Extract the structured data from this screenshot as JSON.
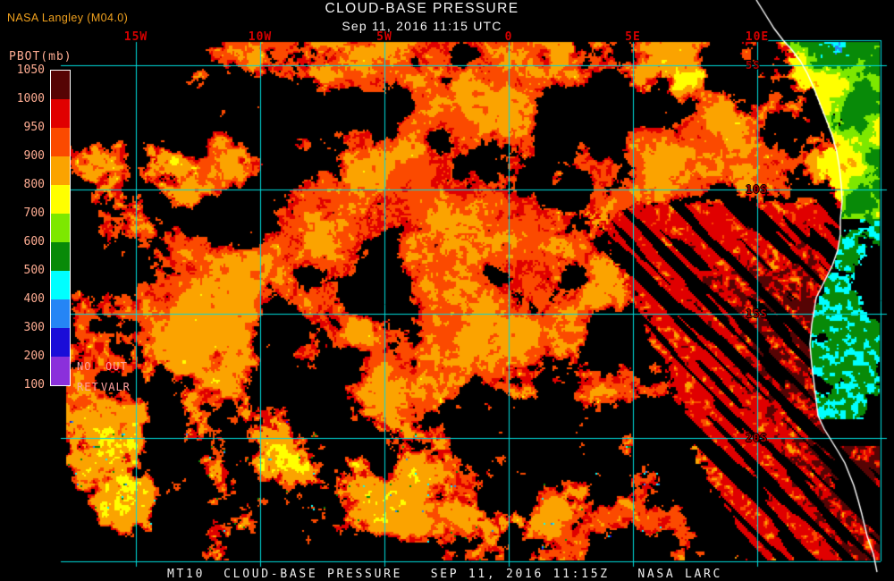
{
  "header": {
    "source_label": "NASA Langley (M04.0)",
    "title": "CLOUD-BASE PRESSURE",
    "subtitle": "Sep 11, 2016 11:15 UTC"
  },
  "colorbar": {
    "title": "PBOT(mb)",
    "unit": "mb",
    "tick_labels": [
      "1050",
      "1000",
      "950",
      "900",
      "800",
      "700",
      "600",
      "500",
      "400",
      "300",
      "200",
      "100"
    ],
    "band_colors": [
      "#560404",
      "#E00000",
      "#FB4A00",
      "#FBA300",
      "#FFFF00",
      "#7DE800",
      "#088A08",
      "#00FFFF",
      "#2585F5",
      "#1A0DD8",
      "#8B30DB"
    ],
    "flag_labels": [
      "NO",
      "OUT",
      "RET",
      "VALR"
    ]
  },
  "map": {
    "lon_labels": [
      "15W",
      "10W",
      "5W",
      "0",
      "5E",
      "10E"
    ],
    "lat_labels": [
      "5S",
      "10S",
      "15S",
      "20S"
    ],
    "grid_color": "#00DCDC",
    "coast_color": "#FFFFFF",
    "lon_label_color": "#D80000",
    "lat_label_color": "#A80000",
    "clear_sky_color": "#000000"
  },
  "footer": {
    "caption": "MT10  CLOUD-BASE PRESSURE   SEP 11, 2016 11:15Z   NASA LARC"
  }
}
